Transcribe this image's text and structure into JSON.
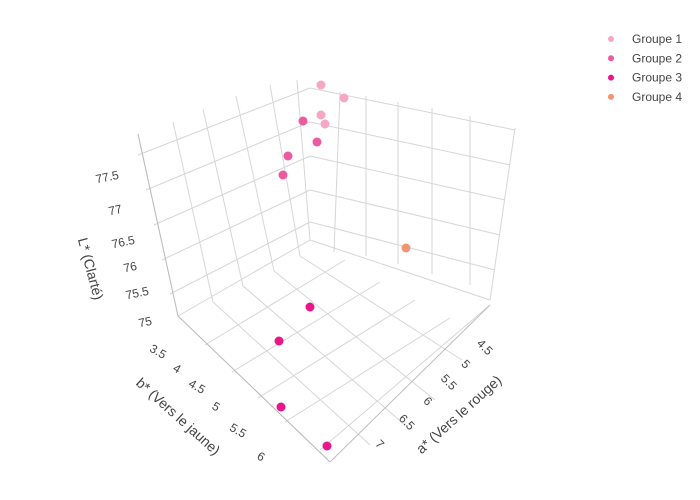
{
  "chart_data": {
    "type": "scatter3d",
    "axes": {
      "x": {
        "label": "a* (Vers le rouge)",
        "ticks": [
          "4.5",
          "5",
          "5.5",
          "6",
          "6.5",
          "7"
        ]
      },
      "y": {
        "label": "b* (Vers le jaune)",
        "ticks": [
          "3.5",
          "4",
          "4.5",
          "5",
          "5.5",
          "6"
        ]
      },
      "z": {
        "label": "L* (Clarté)",
        "ticks": [
          "75",
          "75.5",
          "76",
          "76.5",
          "77",
          "77.5"
        ]
      }
    },
    "series": [
      {
        "name": "Groupe 1",
        "color": "#f4a8c3",
        "points": 4
      },
      {
        "name": "Groupe 2",
        "color": "#ec5a9f",
        "points": 4
      },
      {
        "name": "Groupe 3",
        "color": "#e9158b",
        "points": 4
      },
      {
        "name": "Groupe 4",
        "color": "#f39372",
        "points": 1
      }
    ],
    "legend": "top-right",
    "grid": true
  }
}
